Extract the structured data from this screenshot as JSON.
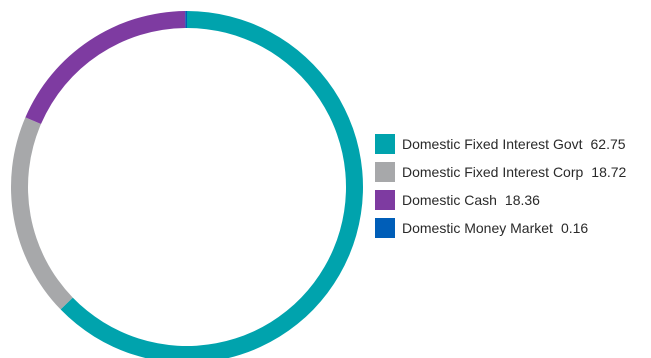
{
  "chart_data": {
    "type": "pie",
    "variant": "donut",
    "series": [
      {
        "name": "Domestic Fixed Interest Govt",
        "value": 62.75,
        "value_label": "62.75",
        "color": "#00A3AD"
      },
      {
        "name": "Domestic Fixed Interest Corp",
        "value": 18.72,
        "value_label": "18.72",
        "color": "#A7A8AA"
      },
      {
        "name": "Domestic Cash",
        "value": 18.36,
        "value_label": "18.36",
        "color": "#7E3BA1"
      },
      {
        "name": "Domestic Money Market",
        "value": 0.16,
        "value_label": "0.16",
        "color": "#005EB8"
      }
    ],
    "start_angle": "top",
    "direction": "clockwise",
    "legend_position": "right"
  }
}
